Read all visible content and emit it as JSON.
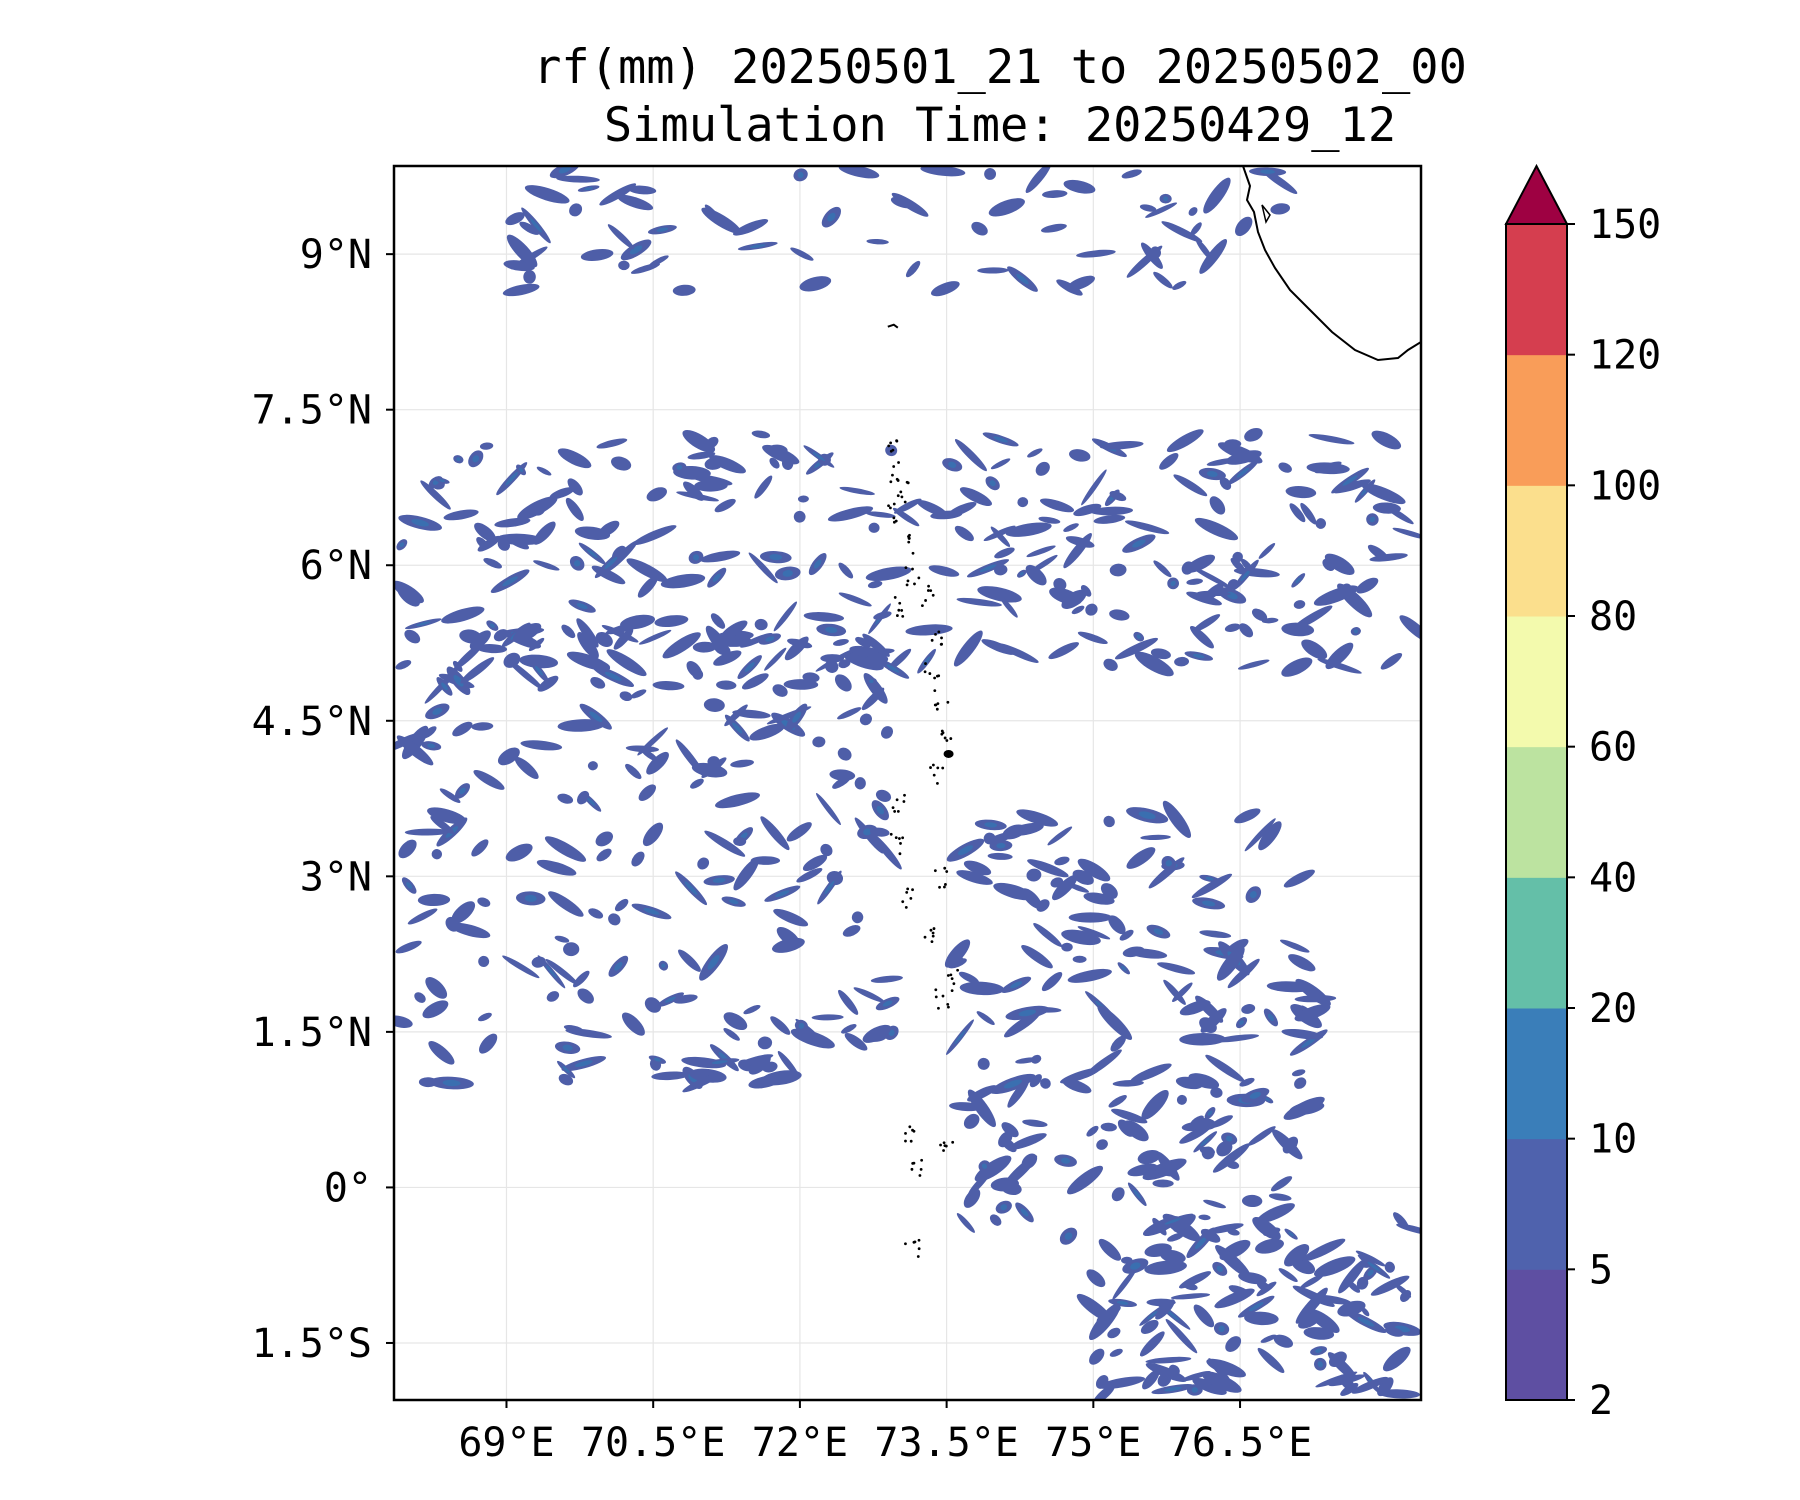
{
  "title": {
    "line1": "rf(mm) 20250501_21 to 20250502_00",
    "line2": "Simulation Time: 20250429_12"
  },
  "map": {
    "lon_range": [
      67.85,
      78.35
    ],
    "lat_range": [
      -2.05,
      9.85
    ],
    "lon_ticks": [
      "69°E",
      "70.5°E",
      "72°E",
      "73.5°E",
      "75°E",
      "76.5°E"
    ],
    "lat_ticks": [
      "9°N",
      "7.5°N",
      "6°N",
      "4.5°N",
      "3°N",
      "1.5°N",
      "0°",
      "1.5°S"
    ],
    "grid": true,
    "fill_color": "#4e5ea8",
    "dense_color": "#3a6fb0",
    "regions": [
      {
        "name": "northern band",
        "lat": [
          5.0,
          7.3
        ],
        "lon": [
          67.9,
          78.3
        ]
      },
      {
        "name": "western cluster",
        "lat": [
          1.0,
          5.5
        ],
        "lon": [
          67.9,
          73.0
        ]
      },
      {
        "name": "central-east cluster",
        "lat": [
          -0.5,
          3.6
        ],
        "lon": [
          73.6,
          77.3
        ]
      },
      {
        "name": "southeast cluster",
        "lat": [
          -2.0,
          -0.3
        ],
        "lon": [
          75.0,
          78.3
        ]
      },
      {
        "name": "north edge",
        "lat": [
          8.6,
          9.85
        ],
        "lon": [
          69.0,
          77.0
        ]
      }
    ]
  },
  "colorbar": {
    "levels": [
      "2",
      "5",
      "10",
      "20",
      "40",
      "60",
      "80",
      "100",
      "120",
      "150"
    ],
    "colors": [
      "#5e4fa2",
      "#4f62ad",
      "#3a7eb9",
      "#64bfa8",
      "#bce3a0",
      "#f3faad",
      "#fbdf8d",
      "#f99d59",
      "#d53e4f",
      "#9e0142"
    ]
  }
}
